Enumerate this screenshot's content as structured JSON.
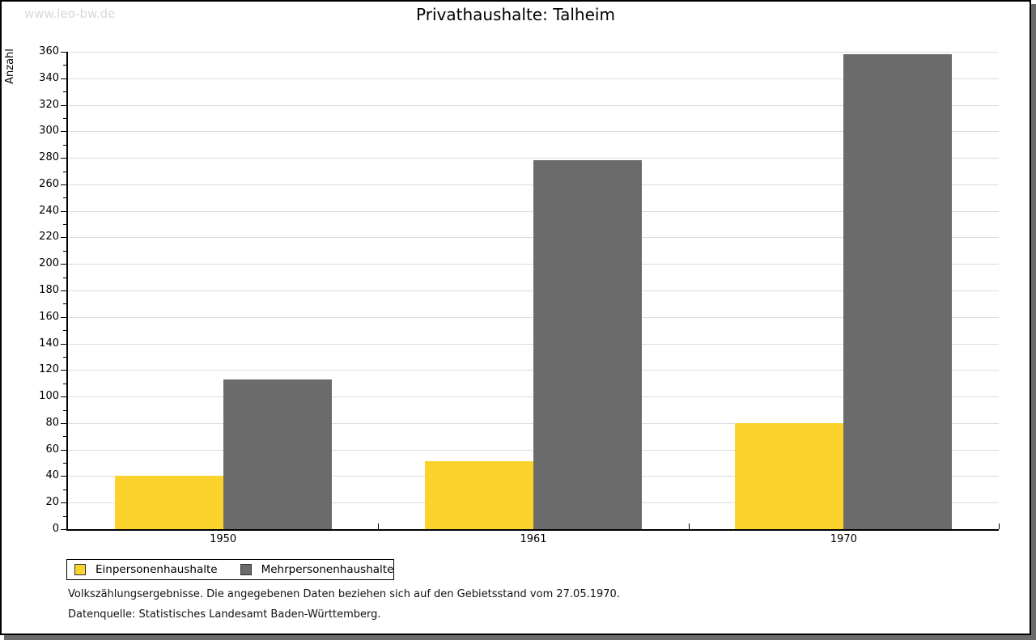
{
  "page": {
    "watermark": "www.leo-bw.de",
    "title": "Privathaushalte: Talheim"
  },
  "chart_data": {
    "type": "bar",
    "title": "Privathaushalte: Talheim",
    "categories": [
      "1950",
      "1961",
      "1970"
    ],
    "series": [
      {
        "name": "Einpersonenhaushalte",
        "color": "#FCD32D",
        "values": [
          40,
          51,
          80
        ]
      },
      {
        "name": "Mehrpersonenhaushalte",
        "color": "#6B6B6B",
        "values": [
          113,
          278,
          358
        ]
      }
    ],
    "xlabel": "",
    "ylabel": "Anzahl",
    "ylim": [
      0,
      360
    ],
    "ytick_major": 20,
    "ytick_minor": 10,
    "grid": true,
    "gridline_color": "#DCDCDC",
    "legend_position": "bottom-left",
    "legend_entries": [
      "Einpersonenhaushalte",
      "Mehrpersonenhaushalte"
    ]
  },
  "footer": {
    "line1": "Volkszählungsergebnisse. Die angegebenen Daten beziehen sich auf den Gebietsstand vom 27.05.1970.",
    "line2": "Datenquelle: Statistisches Landesamt Baden-Württemberg."
  },
  "colors": {
    "bar_yellow": "#FCD32D",
    "bar_gray": "#6B6B6B",
    "grid": "#DCDCDC",
    "axis": "#000000",
    "watermark": "#D8D8D8",
    "frame_shadow": "#6B6B6B"
  }
}
